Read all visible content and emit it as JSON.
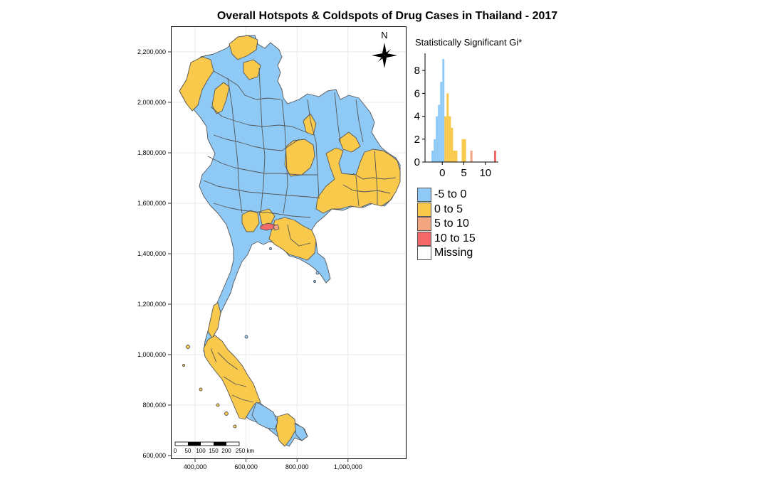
{
  "title": "Overall Hotspots & Coldspots of Drug Cases in Thailand - 2017",
  "colors": {
    "neg": "#8fcaf7",
    "pos_low": "#f9c94b",
    "pos_mid": "#f4a582",
    "pos_high": "#f46a6a",
    "missing": "#ffffff",
    "border": "#555555"
  },
  "map": {
    "y_ticks": [
      "2,200,000",
      "2,000,000",
      "1,800,000",
      "1,600,000",
      "1,400,000",
      "1,200,000",
      "1,000,000",
      "800,000",
      "600,000"
    ],
    "x_ticks": [
      "400,000",
      "600,000",
      "800,000",
      "1,000,000"
    ],
    "north_label": "N",
    "scalebar_labels": [
      "0",
      "50",
      "100",
      "150",
      "200",
      "250 km"
    ]
  },
  "histogram": {
    "title": "Statistically Significant Gi*",
    "y_ticks": [
      "0",
      "2",
      "4",
      "6",
      "8"
    ],
    "x_ticks": [
      "0",
      "5",
      "10"
    ],
    "bin_width": 0.5,
    "bins": [
      {
        "x": -2.5,
        "count": 1,
        "class": "neg"
      },
      {
        "x": -2.0,
        "count": 2,
        "class": "neg"
      },
      {
        "x": -1.5,
        "count": 4,
        "class": "neg"
      },
      {
        "x": -1.0,
        "count": 5,
        "class": "neg"
      },
      {
        "x": -0.5,
        "count": 7,
        "class": "neg"
      },
      {
        "x": 0.0,
        "count": 9,
        "class": "neg"
      },
      {
        "x": 0.5,
        "count": 4,
        "class": "pos_low"
      },
      {
        "x": 1.0,
        "count": 6,
        "class": "pos_low"
      },
      {
        "x": 1.5,
        "count": 4,
        "class": "pos_low"
      },
      {
        "x": 2.0,
        "count": 3,
        "class": "pos_low"
      },
      {
        "x": 2.5,
        "count": 1,
        "class": "pos_low"
      },
      {
        "x": 3.0,
        "count": 1,
        "class": "pos_low"
      },
      {
        "x": 3.5,
        "count": 0,
        "class": "pos_low"
      },
      {
        "x": 4.0,
        "count": 0,
        "class": "pos_low"
      },
      {
        "x": 4.5,
        "count": 2,
        "class": "pos_low"
      },
      {
        "x": 5.0,
        "count": 2,
        "class": "pos_low"
      },
      {
        "x": 6.5,
        "count": 1,
        "class": "pos_mid"
      },
      {
        "x": 12.0,
        "count": 1,
        "class": "pos_high"
      }
    ]
  },
  "legend": [
    {
      "label": "-5 to 0",
      "class": "neg"
    },
    {
      "label": "0 to 5",
      "class": "pos_low"
    },
    {
      "label": "5 to 10",
      "class": "pos_mid"
    },
    {
      "label": "10 to 15",
      "class": "pos_high"
    },
    {
      "label": "Missing",
      "class": "missing"
    }
  ]
}
